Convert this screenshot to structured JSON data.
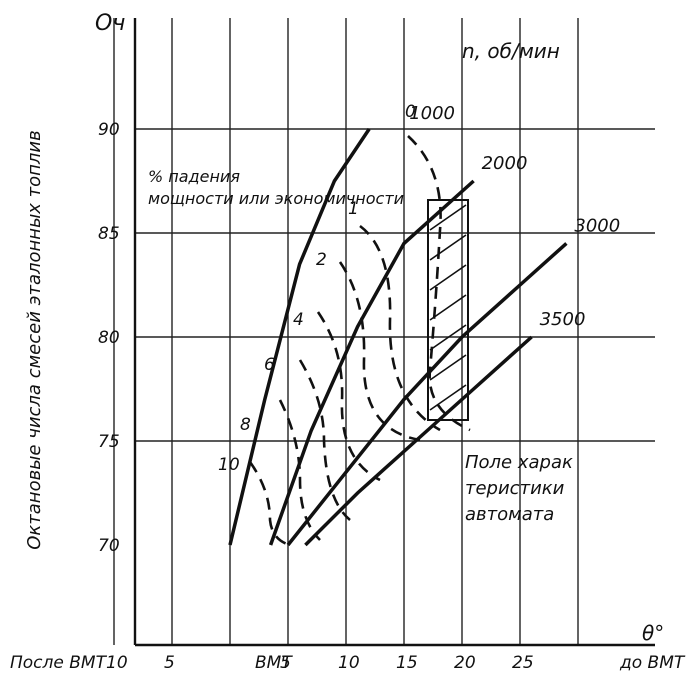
{
  "chart_data": {
    "type": "line",
    "title": "",
    "ylabel": "Октановые числа смесей эталонных топлив",
    "xlabel_left": "После ВМТ",
    "xlabel_right": "до ВМТ",
    "xlabel_mid": "ВМТ",
    "x_axis_symbol": "θ°",
    "y_top_label": "Оч",
    "ylim": [
      65,
      95
    ],
    "xlim": [
      -15,
      30
    ],
    "x_tick_labels": [
      "10",
      "5",
      "5",
      "10",
      "15",
      "20",
      "25"
    ],
    "y_tick_labels": [
      "70",
      "75",
      "80",
      "85",
      "90"
    ],
    "rpm_header": "n, об/мин",
    "series": [
      {
        "name": "1000",
        "x": [
          0,
          3,
          6,
          9,
          12
        ],
        "y": [
          70,
          77,
          83.5,
          87.5,
          90
        ]
      },
      {
        "name": "2000",
        "x": [
          3.5,
          7,
          11,
          15,
          21
        ],
        "y": [
          70,
          75.5,
          80.5,
          84.5,
          87.5
        ]
      },
      {
        "name": "3000",
        "x": [
          5,
          10,
          15,
          20,
          25,
          29
        ],
        "y": [
          70,
          73.5,
          77,
          80,
          82.5,
          84.5
        ]
      },
      {
        "name": "3500",
        "x": [
          6.5,
          11,
          16,
          21,
          26
        ],
        "y": [
          70,
          72.5,
          75,
          77.5,
          80
        ]
      }
    ],
    "power_drop_values": [
      "0",
      "1",
      "2",
      "4",
      "6",
      "8",
      "10"
    ],
    "power_drop_label": "% падения мощности или экономичности",
    "annotation_field": "Поле характеристики автомата"
  }
}
